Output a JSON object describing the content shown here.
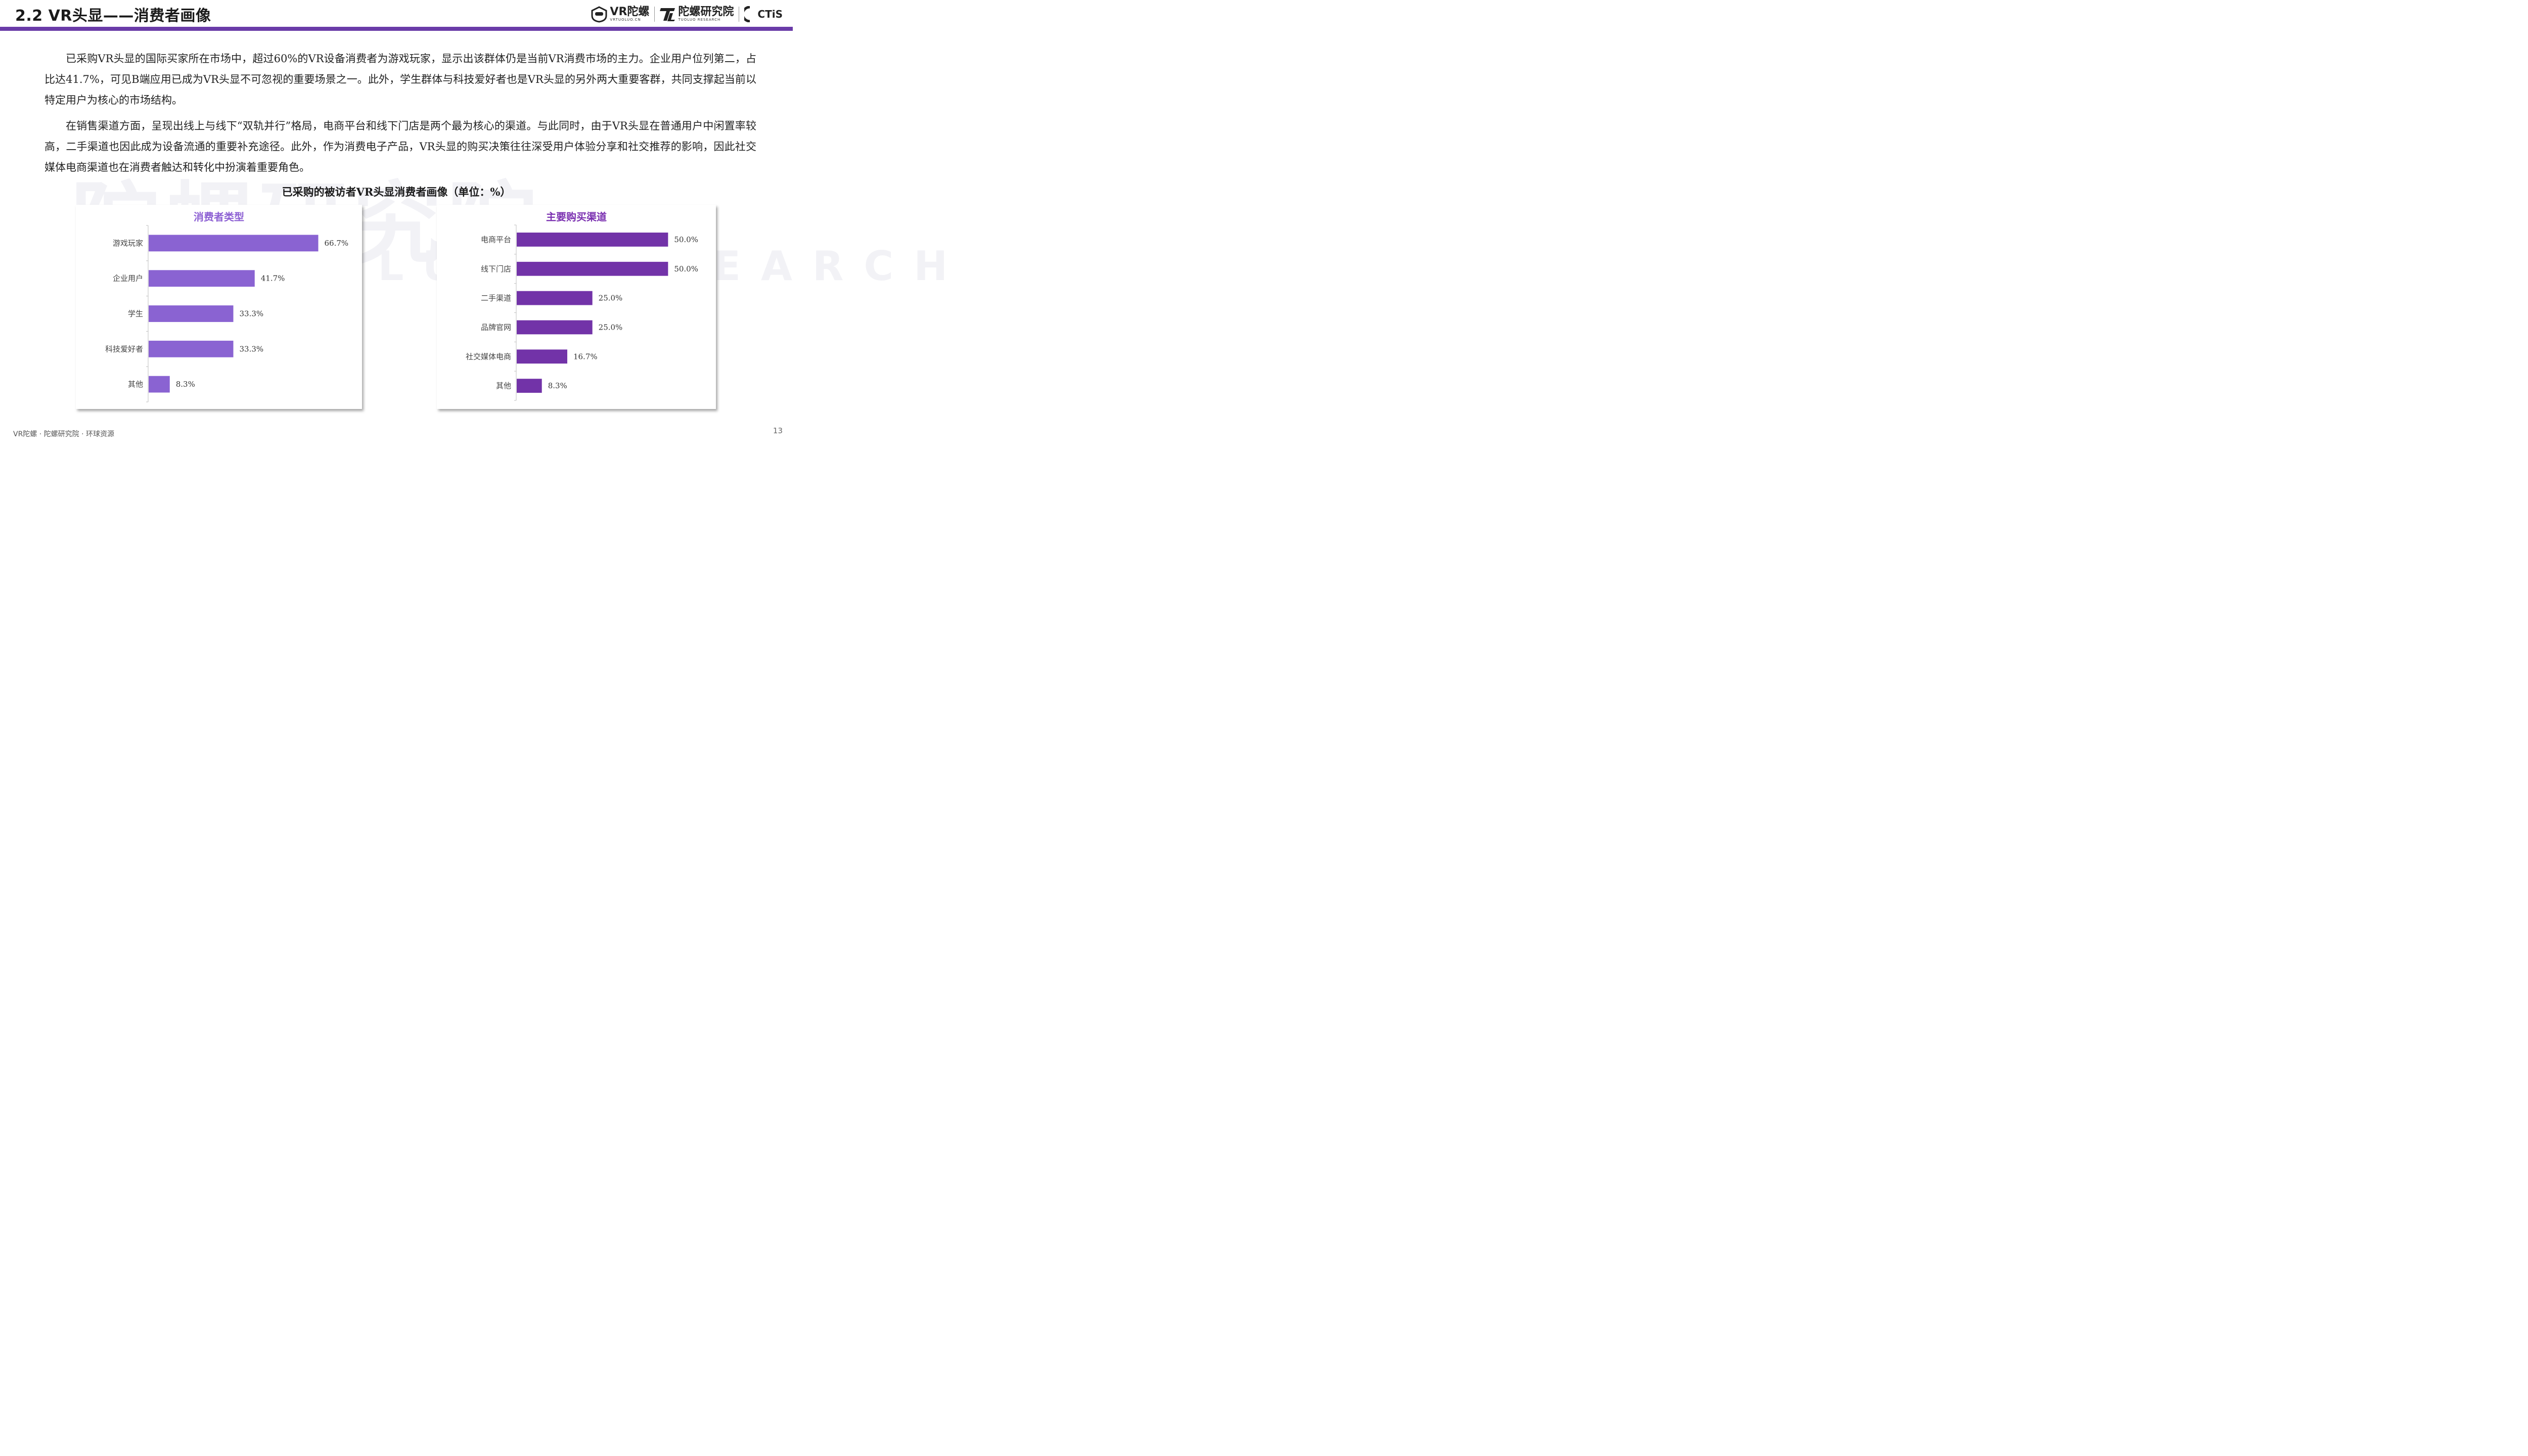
{
  "header": {
    "title": "2.2 VR头显——消费者画像",
    "logos": [
      {
        "icon": "vr-headset-logo-icon",
        "name": "VR陀螺",
        "subtitle": "VRTUOLUO.CN"
      },
      {
        "icon": "tuoluo-research-logo-icon",
        "name": "陀螺研究院",
        "subtitle": "TUOLUO RESEARCH"
      },
      {
        "icon": "ctis-logo-icon",
        "name": "CTiS",
        "subtitle": ""
      }
    ]
  },
  "watermark": {
    "cn": "陀螺研究院",
    "en": "TUOLUO RESEARCH"
  },
  "paragraphs": [
    "已采购VR头显的国际买家所在市场中，超过60%的VR设备消费者为游戏玩家，显示出该群体仍是当前VR消费市场的主力。企业用户位列第二，占比达41.7%，可见B端应用已成为VR头显不可忽视的重要场景之一。此外，学生群体与科技爱好者也是VR头显的另外两大重要客群，共同支撑起当前以特定用户为核心的市场结构。",
    "在销售渠道方面，呈现出线上与线下“双轨并行”格局，电商平台和线下门店是两个最为核心的渠道。与此同时，由于VR头显在普通用户中闲置率较高，二手渠道也因此成为设备流通的重要补充途径。此外，作为消费电子产品，VR头显的购买决策往往深受用户体验分享和社交推荐的影响，因此社交媒体电商渠道也在消费者触达和转化中扮演着重要角色。"
  ],
  "chart_title": "已采购的被访者VR头显消费者画像（单位：%）",
  "chart_data": [
    {
      "type": "bar",
      "orientation": "horizontal",
      "title": "消费者类型",
      "categories": [
        "游戏玩家",
        "企业用户",
        "学生",
        "科技爱好者",
        "其他"
      ],
      "values": [
        66.7,
        41.7,
        33.3,
        33.3,
        8.3
      ],
      "labels": [
        "66.7%",
        "41.7%",
        "33.3%",
        "33.3%",
        "8.3%"
      ],
      "color": "#8a63d2",
      "xlim": [
        0,
        100
      ]
    },
    {
      "type": "bar",
      "orientation": "horizontal",
      "title": "主要购买渠道",
      "categories": [
        "电商平台",
        "线下门店",
        "二手渠道",
        "品牌官网",
        "社交媒体电商",
        "其他"
      ],
      "values": [
        50.0,
        50.0,
        25.0,
        25.0,
        16.7,
        8.3
      ],
      "labels": [
        "50.0%",
        "50.0%",
        "25.0%",
        "25.0%",
        "16.7%",
        "8.3%"
      ],
      "color": "#7233a8",
      "xlim": [
        0,
        75
      ]
    }
  ],
  "footer": {
    "source": "VR陀螺 · 陀螺研究院 · 环球资源",
    "page": "13"
  }
}
